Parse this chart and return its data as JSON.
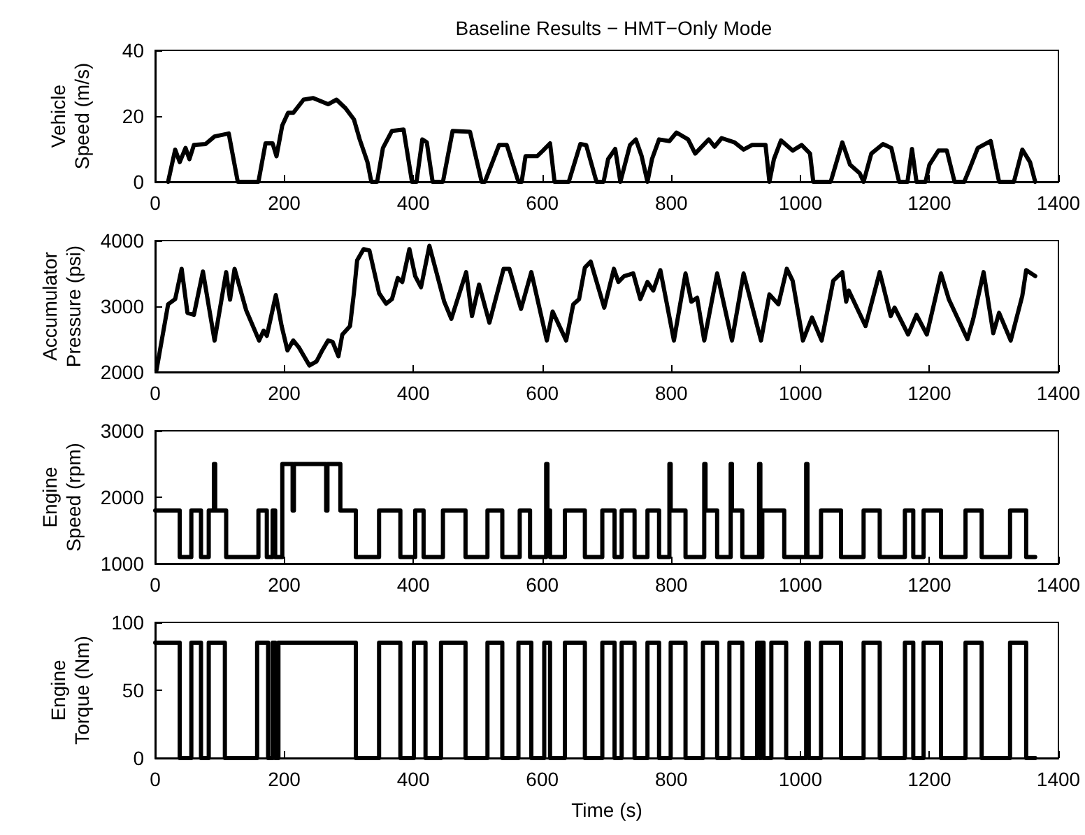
{
  "chart_data": [
    {
      "type": "line",
      "title": "Baseline Results − HMT−Only Mode",
      "ylabel": "Vehicle\nSpeed (m/s)",
      "xlim": [
        0,
        1400
      ],
      "xticks": [
        0,
        200,
        400,
        600,
        800,
        1000,
        1200,
        1400
      ],
      "ylim": [
        0,
        40
      ],
      "yticks": [
        0,
        20,
        40
      ],
      "marker": "none",
      "line_style": "solid",
      "series": [
        {
          "color": "#000000",
          "x": [
            20,
            31,
            38,
            47,
            53,
            60,
            78,
            92,
            114,
            128,
            160,
            171,
            182,
            188,
            197,
            206,
            214,
            230,
            245,
            268,
            281,
            295,
            308,
            317,
            329,
            335,
            344,
            353,
            367,
            385,
            398,
            405,
            414,
            421,
            430,
            446,
            461,
            488,
            506,
            511,
            533,
            545,
            563,
            568,
            574,
            592,
            601,
            612,
            619,
            641,
            659,
            668,
            684,
            695,
            702,
            713,
            721,
            736,
            745,
            754,
            763,
            770,
            781,
            797,
            808,
            826,
            837,
            858,
            867,
            878,
            898,
            912,
            925,
            946,
            952,
            959,
            970,
            988,
            1002,
            1015,
            1020,
            1047,
            1065,
            1077,
            1092,
            1098,
            1110,
            1128,
            1141,
            1153,
            1166,
            1173,
            1180,
            1194,
            1200,
            1214,
            1227,
            1239,
            1254,
            1263,
            1275,
            1295,
            1308,
            1331,
            1344,
            1356,
            1364
          ],
          "values": [
            0,
            9.8,
            6,
            10.3,
            6.9,
            11.2,
            11.5,
            13.8,
            14.7,
            0,
            0,
            11.7,
            11.7,
            7.8,
            17.2,
            21,
            21,
            25,
            25.5,
            23.6,
            25,
            22.4,
            19,
            12.9,
            6,
            0,
            0,
            10.3,
            15.5,
            15.9,
            0,
            0,
            12.9,
            12,
            0,
            0,
            15.5,
            15.2,
            0,
            0,
            11.2,
            11.2,
            0,
            0,
            7.8,
            7.8,
            9.5,
            11.7,
            0,
            0,
            11.5,
            11.2,
            0,
            0,
            6.9,
            10,
            0,
            11.2,
            12.9,
            7.8,
            0,
            6.9,
            12.9,
            12.4,
            15,
            12.9,
            8.6,
            12.9,
            10.7,
            13.3,
            12,
            9.8,
            11.2,
            11.2,
            0,
            6.9,
            12.6,
            9.5,
            11.2,
            8.6,
            0,
            0,
            12,
            5.2,
            2.6,
            0,
            8.6,
            11.5,
            10.3,
            0,
            0,
            10,
            0,
            0,
            5.2,
            9.5,
            9.5,
            0,
            0,
            4.3,
            10.3,
            12.4,
            0,
            0,
            9.8,
            6,
            0
          ]
        }
      ]
    },
    {
      "type": "line",
      "ylabel": "Accumulator\nPressure (psi)",
      "xlim": [
        0,
        1400
      ],
      "xticks": [
        0,
        200,
        400,
        600,
        800,
        1000,
        1200,
        1400
      ],
      "ylim": [
        2000,
        4000
      ],
      "yticks": [
        2000,
        3000,
        4000
      ],
      "marker": "none",
      "line_style": "solid",
      "series": [
        {
          "color": "#000000",
          "x": [
            2,
            20,
            31,
            41,
            50,
            60,
            74,
            92,
            110,
            116,
            123,
            141,
            161,
            168,
            173,
            187,
            196,
            205,
            214,
            223,
            239,
            250,
            259,
            268,
            275,
            284,
            290,
            302,
            308,
            313,
            323,
            332,
            347,
            358,
            367,
            376,
            383,
            394,
            403,
            412,
            425,
            448,
            459,
            482,
            491,
            502,
            518,
            540,
            549,
            567,
            583,
            607,
            616,
            637,
            648,
            657,
            666,
            675,
            696,
            711,
            718,
            727,
            741,
            752,
            763,
            772,
            783,
            804,
            822,
            831,
            840,
            851,
            871,
            894,
            912,
            939,
            952,
            966,
            979,
            988,
            1004,
            1018,
            1033,
            1051,
            1065,
            1071,
            1075,
            1101,
            1123,
            1140,
            1146,
            1167,
            1180,
            1196,
            1207,
            1218,
            1230,
            1259,
            1268,
            1284,
            1299,
            1308,
            1326,
            1344,
            1350,
            1364
          ],
          "values": [
            2030,
            3030,
            3110,
            3570,
            2900,
            2870,
            3530,
            2480,
            3520,
            3100,
            3570,
            2940,
            2480,
            2630,
            2550,
            3170,
            2700,
            2330,
            2480,
            2370,
            2100,
            2160,
            2330,
            2480,
            2460,
            2240,
            2570,
            2700,
            3200,
            3700,
            3870,
            3850,
            3200,
            3040,
            3110,
            3430,
            3370,
            3870,
            3460,
            3290,
            3920,
            3070,
            2810,
            3520,
            2850,
            3330,
            2750,
            3570,
            3570,
            2960,
            3520,
            2480,
            2920,
            2480,
            3030,
            3110,
            3590,
            3680,
            2980,
            3570,
            3370,
            3460,
            3500,
            3110,
            3370,
            3240,
            3550,
            2480,
            3500,
            3070,
            3130,
            2480,
            3500,
            2480,
            3500,
            2480,
            3180,
            3030,
            3570,
            3390,
            2480,
            2830,
            2480,
            3390,
            3520,
            3070,
            3240,
            2700,
            3520,
            2850,
            2980,
            2570,
            2870,
            2570,
            3030,
            3500,
            3110,
            2500,
            2810,
            3520,
            2590,
            2900,
            2480,
            3160,
            3550,
            3460
          ]
        }
      ]
    },
    {
      "type": "step",
      "ylabel": "Engine\nSpeed (rpm)",
      "xlim": [
        0,
        1400
      ],
      "xticks": [
        0,
        200,
        400,
        600,
        800,
        1000,
        1200,
        1400
      ],
      "ylim": [
        1000,
        3000
      ],
      "yticks": [
        1000,
        2000,
        3000
      ],
      "marker": "none",
      "line_style": "solid",
      "series": [
        {
          "color": "#000000",
          "x": [
            0,
            38,
            56,
            71,
            83,
            91,
            93,
            110,
            160,
            173,
            182,
            186,
            197,
            213,
            215,
            265,
            267,
            287,
            311,
            347,
            380,
            403,
            416,
            446,
            481,
            515,
            538,
            565,
            581,
            606,
            608,
            612,
            635,
            666,
            693,
            712,
            723,
            743,
            763,
            781,
            797,
            799,
            822,
            851,
            853,
            871,
            892,
            894,
            910,
            936,
            938,
            941,
            975,
            1009,
            1011,
            1032,
            1063,
            1098,
            1123,
            1162,
            1175,
            1191,
            1218,
            1256,
            1281,
            1325,
            1350,
            1364
          ],
          "values": [
            1800,
            1100,
            1800,
            1100,
            1800,
            2500,
            1800,
            1100,
            1800,
            1100,
            1800,
            1100,
            2500,
            1800,
            2500,
            1800,
            2500,
            1800,
            1100,
            1800,
            1100,
            1800,
            1100,
            1800,
            1100,
            1800,
            1100,
            1800,
            1100,
            2500,
            1800,
            1100,
            1800,
            1100,
            1800,
            1100,
            1800,
            1100,
            1800,
            1100,
            2500,
            1800,
            1100,
            2500,
            1800,
            1100,
            2500,
            1800,
            1100,
            2500,
            1100,
            1800,
            1100,
            2500,
            1100,
            1800,
            1100,
            1800,
            1100,
            1800,
            1100,
            1800,
            1100,
            1800,
            1100,
            1800,
            1100,
            1100
          ]
        }
      ]
    },
    {
      "type": "step",
      "ylabel": "Engine\nTorque (Nm)",
      "xlabel": "Time (s)",
      "xlim": [
        0,
        1400
      ],
      "xticks": [
        0,
        200,
        400,
        600,
        800,
        1000,
        1200,
        1400
      ],
      "ylim": [
        0,
        100
      ],
      "yticks": [
        0,
        50,
        100
      ],
      "marker": "none",
      "line_style": "solid",
      "series": [
        {
          "color": "#000000",
          "x": [
            0,
            38,
            56,
            71,
            83,
            108,
            158,
            175,
            182,
            186,
            191,
            311,
            347,
            380,
            401,
            419,
            443,
            481,
            515,
            538,
            563,
            583,
            603,
            612,
            635,
            666,
            693,
            712,
            723,
            743,
            763,
            781,
            799,
            822,
            849,
            871,
            890,
            910,
            933,
            937,
            939,
            943,
            955,
            978,
            1009,
            1013,
            1032,
            1063,
            1098,
            1123,
            1162,
            1175,
            1191,
            1218,
            1256,
            1281,
            1325,
            1350,
            1364
          ],
          "values": [
            85,
            0,
            85,
            0,
            85,
            0,
            85,
            0,
            85,
            0,
            85,
            0,
            85,
            0,
            85,
            0,
            85,
            0,
            85,
            0,
            85,
            0,
            85,
            0,
            85,
            0,
            85,
            0,
            85,
            0,
            85,
            0,
            85,
            0,
            85,
            0,
            85,
            0,
            85,
            0,
            85,
            0,
            85,
            0,
            85,
            0,
            85,
            0,
            85,
            0,
            85,
            0,
            85,
            0,
            85,
            0,
            85,
            0,
            0
          ]
        }
      ]
    }
  ]
}
